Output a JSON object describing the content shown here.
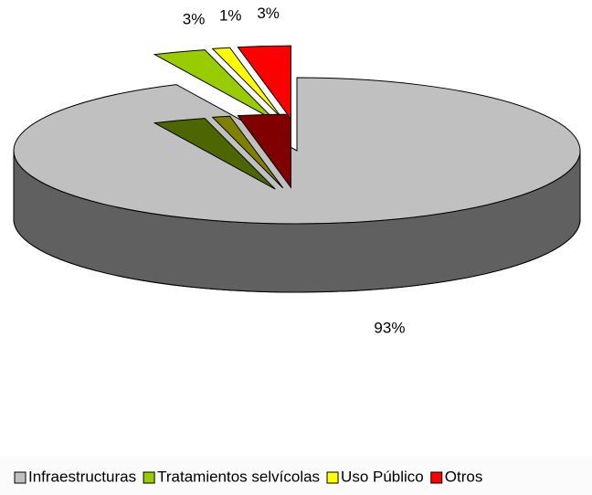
{
  "chart_data": {
    "type": "pie3d",
    "categories": [
      "Infraestructuras",
      "Tratamientos selvícolas",
      "Uso Público",
      "Otros"
    ],
    "values": [
      93,
      3,
      1,
      3
    ],
    "value_labels": [
      "93%",
      "3%",
      "1%",
      "3%"
    ],
    "colors": [
      "#c0c0c0",
      "#99cc00",
      "#ffff00",
      "#ff0000"
    ],
    "legend": "bottom"
  }
}
